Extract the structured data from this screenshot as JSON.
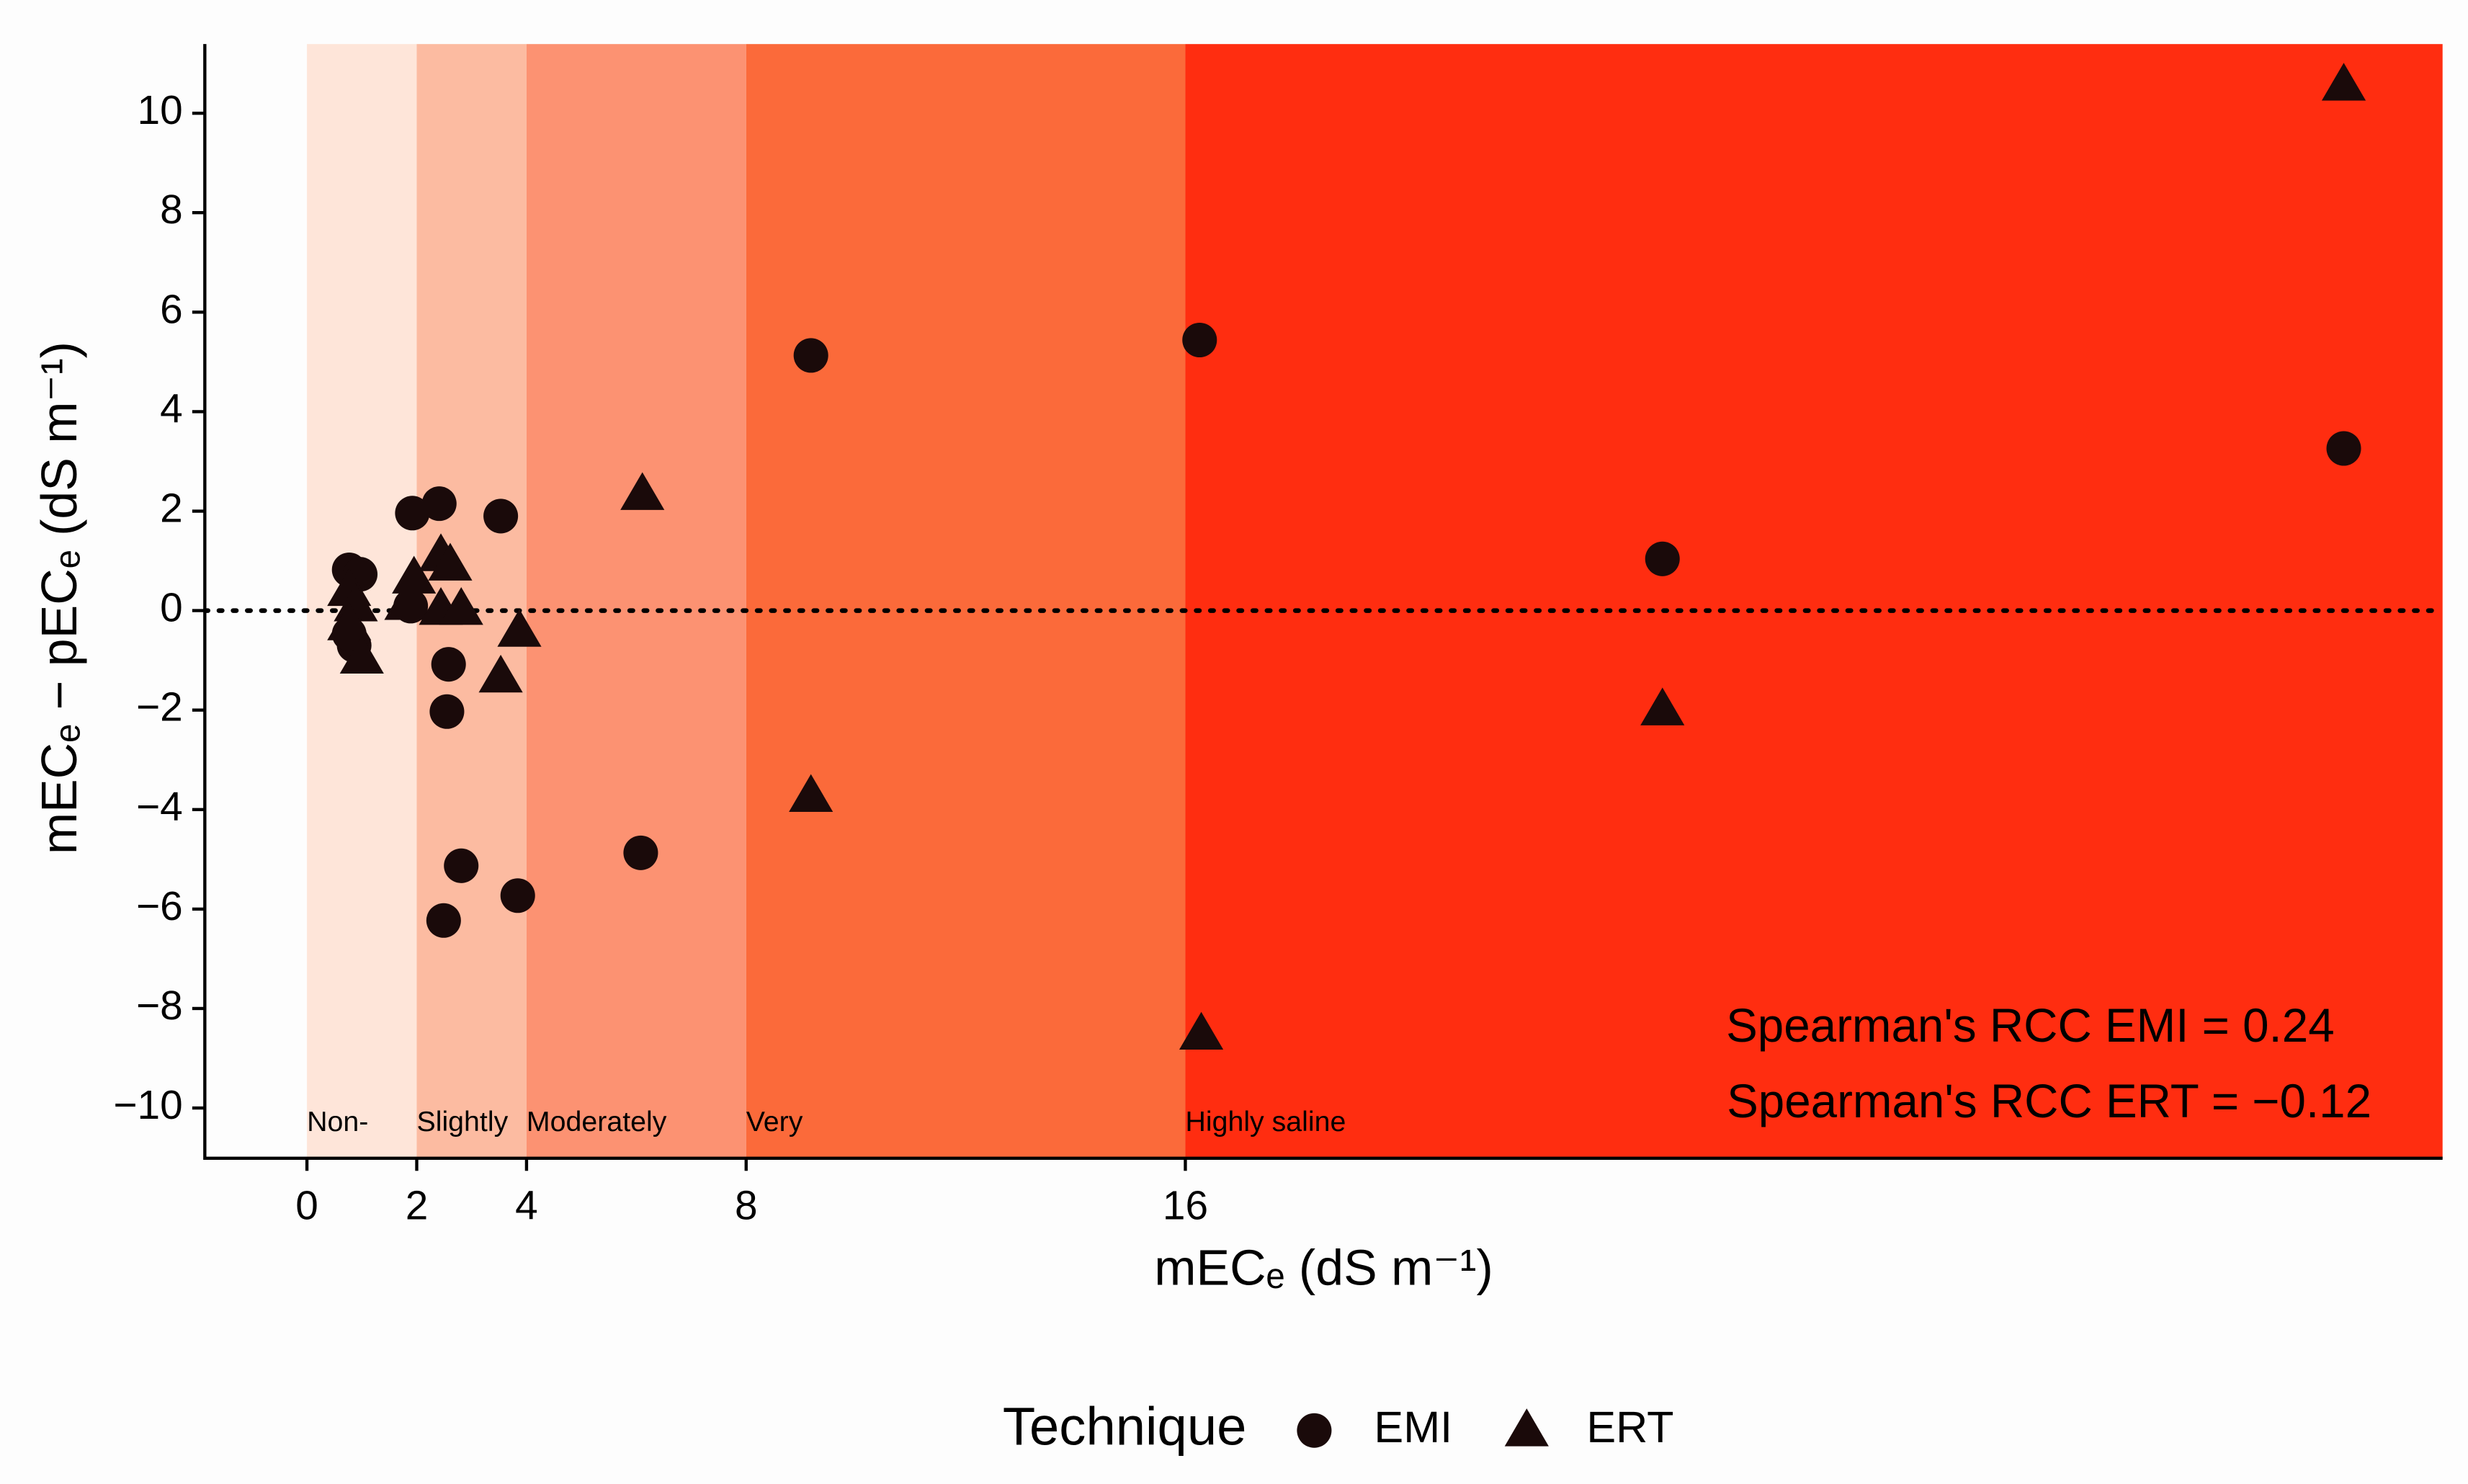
{
  "chart_data": {
    "type": "scatter",
    "x_label": "mECₑ (dS m⁻¹)",
    "y_label": "mECₑ − pECₑ (dS m⁻¹)",
    "xlim": [
      -1.86,
      38.9
    ],
    "ylim": [
      -11.01,
      11.39
    ],
    "xticks": [
      0,
      2,
      4,
      8,
      16
    ],
    "yticks": [
      {
        "value": -10,
        "label": "−10"
      },
      {
        "value": -8,
        "label": "−8"
      },
      {
        "value": -6,
        "label": "−6"
      },
      {
        "value": -4,
        "label": "−4"
      },
      {
        "value": -2,
        "label": "−2"
      },
      0,
      2,
      4,
      6,
      8,
      10
    ],
    "hline": 0,
    "bands": [
      {
        "from": 0,
        "to": 2,
        "label": "Non-",
        "color": "#fee5d9"
      },
      {
        "from": 2,
        "to": 4,
        "label": "Slightly",
        "color": "#fcbba1"
      },
      {
        "from": 4,
        "to": 8,
        "label": "Moderately",
        "color": "#fc9272"
      },
      {
        "from": 8,
        "to": 16,
        "label": "Very",
        "color": "#fb6a3a"
      },
      {
        "from": 16,
        "to": 38.9,
        "label": "Highly saline",
        "color": "#ff2d10"
      }
    ],
    "annotations": [
      "Spearman's RCC EMI = 0.24",
      "Spearman's RCC ERT = −0.12"
    ],
    "legend_title": "Technique",
    "series": [
      {
        "name": "EMI",
        "marker": "circle",
        "color": "#1a0a0a",
        "x": [
          0.77,
          0.97,
          0.86,
          0.77,
          1.92,
          2.41,
          3.53,
          1.89,
          2.58,
          2.55,
          2.81,
          2.49,
          3.84,
          6.08,
          9.18,
          16.26,
          24.69,
          37.1
        ],
        "values": [
          0.82,
          0.73,
          -0.7,
          -0.47,
          1.96,
          2.15,
          1.9,
          0.09,
          -1.08,
          -2.03,
          -5.13,
          -6.23,
          -5.73,
          -4.87,
          5.13,
          5.44,
          1.04,
          3.26
        ]
      },
      {
        "name": "ERT",
        "marker": "triangle",
        "color": "#1a0a0a",
        "x": [
          0.77,
          0.89,
          0.77,
          1.0,
          1.95,
          1.81,
          2.44,
          2.61,
          2.44,
          2.81,
          3.53,
          3.87,
          6.11,
          9.18,
          16.29,
          24.69,
          37.1
        ],
        "values": [
          0.41,
          0.1,
          -0.28,
          -0.95,
          0.66,
          0.13,
          1.11,
          0.92,
          0.03,
          0.03,
          -1.33,
          -0.41,
          2.34,
          -3.73,
          -8.51,
          -1.99,
          10.57
        ]
      }
    ]
  }
}
